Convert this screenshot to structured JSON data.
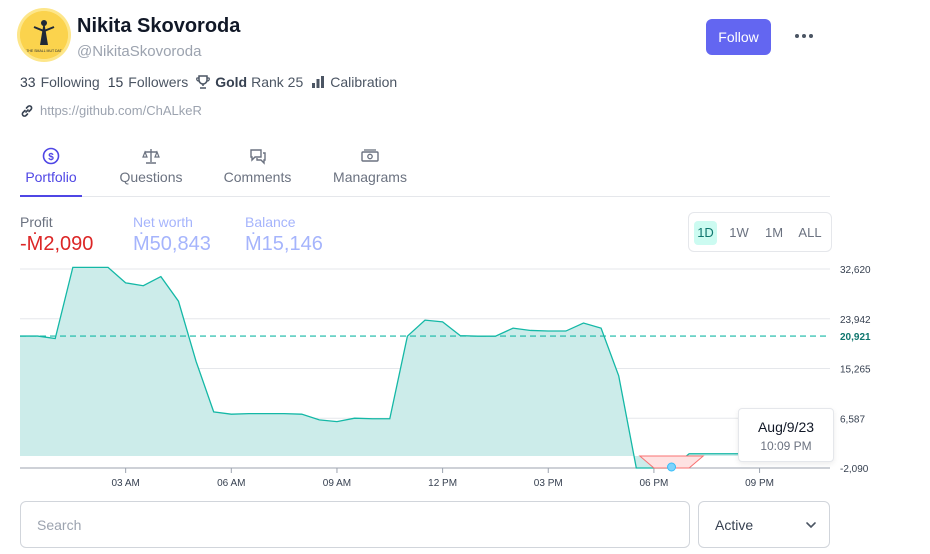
{
  "profile": {
    "name": "Nikita Skovoroda",
    "handle": "@NikitaSkovoroda",
    "avatar_caption": "THE SMALL MUT DAT",
    "follow_label": "Follow",
    "more_icon": "ellipsis-icon"
  },
  "stats": {
    "following_count": "33",
    "following_label": "Following",
    "followers_count": "15",
    "followers_label": "Followers",
    "league": "Gold",
    "rank": "Rank 25",
    "calibration_label": "Calibration"
  },
  "link": {
    "url": "https://github.com/ChALkeR",
    "icon": "link-icon"
  },
  "tabs": [
    {
      "label": "Portfolio",
      "icon": "dollar-circle-icon",
      "active": true
    },
    {
      "label": "Questions",
      "icon": "scale-icon",
      "active": false
    },
    {
      "label": "Comments",
      "icon": "chat-icon",
      "active": false
    },
    {
      "label": "Managrams",
      "icon": "cash-icon",
      "active": false
    }
  ],
  "metrics": [
    {
      "label": "Profit",
      "value": "-Ṁ2,090",
      "color": "#dc2626"
    },
    {
      "label": "Net worth",
      "value": "Ṁ50,843",
      "color": "#a5b4fc"
    },
    {
      "label": "Balance",
      "value": "Ṁ15,146",
      "color": "#a5b4fc"
    }
  ],
  "range_options": [
    "1D",
    "1W",
    "1M",
    "ALL"
  ],
  "range_selected": "1D",
  "colors": {
    "accent": "#6366f1",
    "series": "#14b8a6",
    "negative": "#f87171"
  },
  "tooltip": {
    "date": "Aug/9/23",
    "time": "10:09 PM"
  },
  "search": {
    "placeholder": "Search",
    "value": ""
  },
  "filter": {
    "selected": "Active"
  },
  "chart_data": {
    "type": "area",
    "x": [
      0.0,
      0.5,
      1.0,
      1.5,
      2.0,
      2.5,
      3.0,
      3.5,
      4.0,
      4.5,
      5.0,
      5.5,
      6.0,
      6.5,
      7.0,
      7.5,
      8.0,
      8.5,
      9.0,
      9.5,
      10.0,
      10.5,
      11.0,
      11.5,
      12.0,
      12.5,
      13.0,
      13.5,
      14.0,
      14.5,
      15.0,
      15.5,
      16.0,
      16.5,
      17.0,
      17.5,
      18.0,
      18.5,
      19.0,
      19.5,
      20.0,
      20.5,
      21.0,
      21.5,
      22.0,
      22.5,
      22.75
    ],
    "y": [
      20921,
      20921,
      20500,
      32900,
      32900,
      32900,
      30200,
      29700,
      31300,
      27000,
      16500,
      7700,
      7300,
      7400,
      7400,
      7400,
      7300,
      6300,
      6000,
      6600,
      6500,
      6500,
      20900,
      23700,
      23400,
      21000,
      20900,
      20900,
      22300,
      21900,
      21800,
      21800,
      23200,
      22300,
      14000,
      -2090,
      -2090,
      -2090,
      400,
      400,
      400,
      400,
      400,
      400,
      400,
      400,
      400
    ],
    "x_ticks": [
      3,
      6,
      9,
      12,
      15,
      18,
      21
    ],
    "x_tick_labels": [
      "03 AM",
      "06 AM",
      "09 AM",
      "12 PM",
      "03 PM",
      "06 PM",
      "09 PM"
    ],
    "y_ticks": [
      32620,
      23942,
      15265,
      6587,
      -2090
    ],
    "y_tick_labels": [
      "32,620",
      "23,942",
      "15,265",
      "6,587",
      "-2,090"
    ],
    "reference_value": 20921,
    "reference_label": "20,921",
    "xlim": [
      0,
      23
    ],
    "ylim": [
      -2090,
      32620
    ],
    "grid": true
  }
}
